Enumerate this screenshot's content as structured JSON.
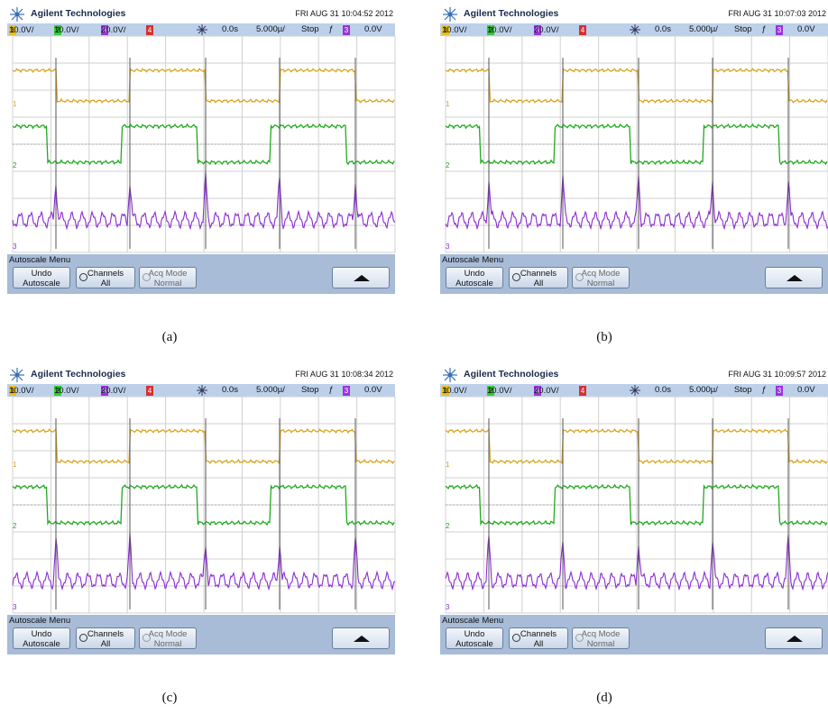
{
  "panels": [
    {
      "brand": "Agilent Technologies",
      "timestamp": "FRI AUG 31 10:04:52 2012",
      "channels": {
        "ch1_num": "1",
        "ch1": "10.0V/",
        "ch2_num": "2",
        "ch2": "10.0V/",
        "ch3_num": "3",
        "ch3": "20.0V/",
        "ch4_num": "4"
      },
      "time_offset": "0.0s",
      "timebase": "5.000µ/",
      "run_state": "Stop",
      "trigger_source_num": "3",
      "trigger_level": "0.0V",
      "menu_title": "Autoscale Menu",
      "undo_label_1": "Undo",
      "undo_label_2": "Autoscale",
      "channels_label_1": "Channels",
      "channels_label_2": "All",
      "acq_label_1": "Acq Mode",
      "acq_label_2": "Normal",
      "caption": "(a)",
      "trace_colors": {
        "ch1": "#d9a520",
        "ch2": "#22aa22",
        "ch3": "#8a2bd2"
      }
    },
    {
      "brand": "Agilent Technologies",
      "timestamp": "FRI AUG 31 10:07:03 2012",
      "channels": {
        "ch1_num": "1",
        "ch1": "10.0V/",
        "ch2_num": "2",
        "ch2": "10.0V/",
        "ch3_num": "3",
        "ch3": "20.0V/",
        "ch4_num": "4"
      },
      "time_offset": "0.0s",
      "timebase": "5.000µ/",
      "run_state": "Stop",
      "trigger_source_num": "3",
      "trigger_level": "0.0V",
      "menu_title": "Autoscale Menu",
      "undo_label_1": "Undo",
      "undo_label_2": "Autoscale",
      "channels_label_1": "Channels",
      "channels_label_2": "All",
      "acq_label_1": "Acq Mode",
      "acq_label_2": "Normal",
      "caption": "(b)",
      "trace_colors": {
        "ch1": "#d9a520",
        "ch2": "#22aa22",
        "ch3": "#8a2bd2"
      }
    },
    {
      "brand": "Agilent Technologies",
      "timestamp": "FRI AUG 31 10:08:34 2012",
      "channels": {
        "ch1_num": "1",
        "ch1": "10.0V/",
        "ch2_num": "2",
        "ch2": "10.0V/",
        "ch3_num": "3",
        "ch3": "20.0V/",
        "ch4_num": "4"
      },
      "time_offset": "0.0s",
      "timebase": "5.000µ/",
      "run_state": "Stop",
      "trigger_source_num": "3",
      "trigger_level": "0.0V",
      "menu_title": "Autoscale Menu",
      "undo_label_1": "Undo",
      "undo_label_2": "Autoscale",
      "channels_label_1": "Channels",
      "channels_label_2": "All",
      "acq_label_1": "Acq Mode",
      "acq_label_2": "Normal",
      "caption": "(c)",
      "trace_colors": {
        "ch1": "#d9a520",
        "ch2": "#22aa22",
        "ch3": "#8a2bd2"
      }
    },
    {
      "brand": "Agilent Technologies",
      "timestamp": "FRI AUG 31 10:09:57 2012",
      "channels": {
        "ch1_num": "1",
        "ch1": "10.0V/",
        "ch2_num": "2",
        "ch2": "10.0V/",
        "ch3_num": "3",
        "ch3": "20.0V/",
        "ch4_num": "4"
      },
      "time_offset": "0.0s",
      "timebase": "5.000µ/",
      "run_state": "Stop",
      "trigger_source_num": "3",
      "trigger_level": "0.0V",
      "menu_title": "Autoscale Menu",
      "undo_label_1": "Undo",
      "undo_label_2": "Autoscale",
      "channels_label_1": "Channels",
      "channels_label_2": "All",
      "acq_label_1": "Acq Mode",
      "acq_label_2": "Normal",
      "caption": "(d)",
      "trace_colors": {
        "ch1": "#d9a520",
        "ch2": "#22aa22",
        "ch3": "#8a2bd2"
      }
    }
  ]
}
